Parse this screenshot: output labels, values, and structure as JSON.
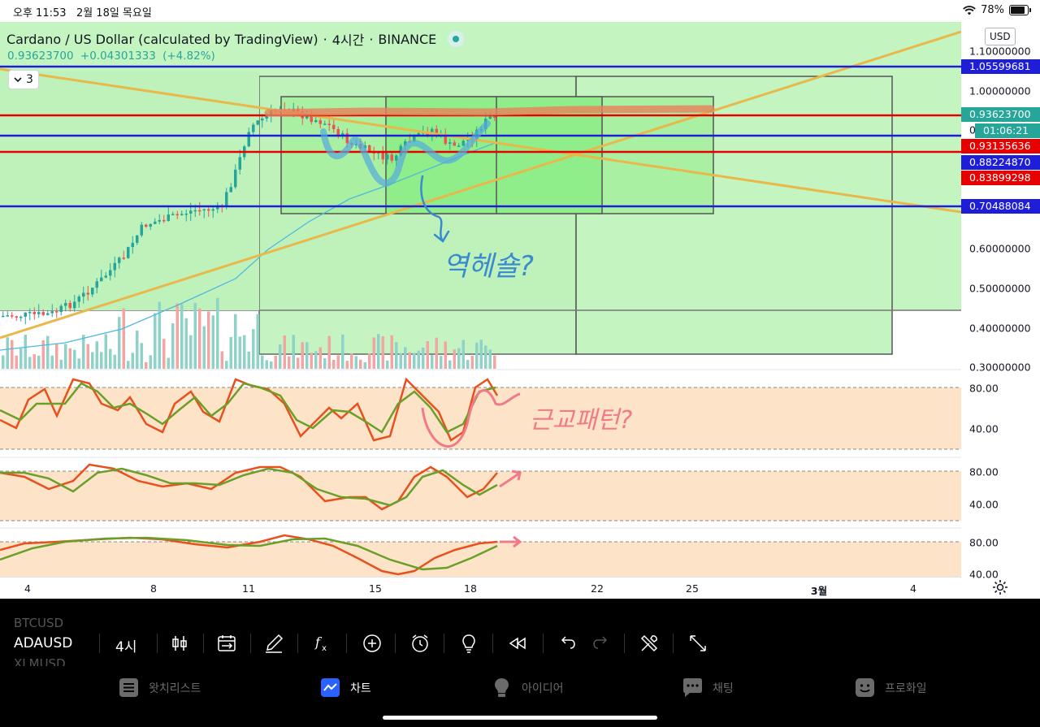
{
  "status_bar": {
    "time": "오후 11:53",
    "date": "2월 18일 목요일",
    "battery": "78%",
    "battery_level": 0.78
  },
  "chart": {
    "title": "Cardano / US Dollar (calculated by TradingView)",
    "separator": "·",
    "interval": "4시간",
    "exchange": "BINANCE",
    "last_price": "0.93623700",
    "change": "+0.04301333",
    "change_percent": "(+4.82%)",
    "collapsed_indicators": "3",
    "currency": "USD",
    "countdown": "01:06:21",
    "price_ticks": [
      "1.10000000",
      "1.00000000",
      "0.60000000",
      "0.50000000",
      "0.40000000",
      "0.30000000"
    ],
    "price_labels": [
      {
        "text": "1.05599681",
        "color": "#1e1ed8"
      },
      {
        "text": "0.93623700",
        "color": "#26a69a"
      },
      {
        "text": "0.93135636",
        "color": "#e60000"
      },
      {
        "text": "0.88224870",
        "color": "#1e1ed8"
      },
      {
        "text": "0.83899298",
        "color": "#e60000"
      },
      {
        "text": "0.70488084",
        "color": "#1e1ed8"
      }
    ],
    "partial_tick": "0.9",
    "osc_ticks": [
      "80.00",
      "40.00",
      "80.00",
      "40.00",
      "80.00",
      "40.00"
    ],
    "time_labels": [
      "4",
      "8",
      "11",
      "15",
      "18",
      "22",
      "25",
      "3월",
      "4"
    ],
    "annotations": {
      "main": "역헤숄?",
      "oscillator": "근교패턴?"
    },
    "colors": {
      "zone_green": "#c4f5c0",
      "oscillator_bg": "#fde4c8",
      "up_candle": "#26a69a",
      "down_candle": "#ef5350",
      "blue_level": "#1e1ed8",
      "red_level": "#e60000",
      "trendline": "#e8b84a",
      "ma_line": "#4fb8e0",
      "stoch_k": "#e8501e",
      "stoch_d": "#6a9f2a"
    }
  },
  "toolbar": {
    "ghost_prev": "BTCUSD",
    "symbol": "ADAUSD",
    "ghost_next": "XLMUSD",
    "interval": "4시",
    "icons": [
      "candles-icon",
      "compare-icon",
      "brush-icon",
      "indicators-icon",
      "add-icon",
      "alert-icon",
      "ideas-icon",
      "replay-icon",
      "undo-icon",
      "redo-icon",
      "tools-icon",
      "fullscreen-icon"
    ]
  },
  "tabs": [
    {
      "label": "왓치리스트",
      "icon": "watchlist-icon",
      "active": false
    },
    {
      "label": "차트",
      "icon": "chart-icon",
      "active": true
    },
    {
      "label": "아이디어",
      "icon": "ideas-tab-icon",
      "active": false
    },
    {
      "label": "채팅",
      "icon": "chat-icon",
      "active": false
    },
    {
      "label": "프로화일",
      "icon": "profile-icon",
      "active": false
    }
  ]
}
